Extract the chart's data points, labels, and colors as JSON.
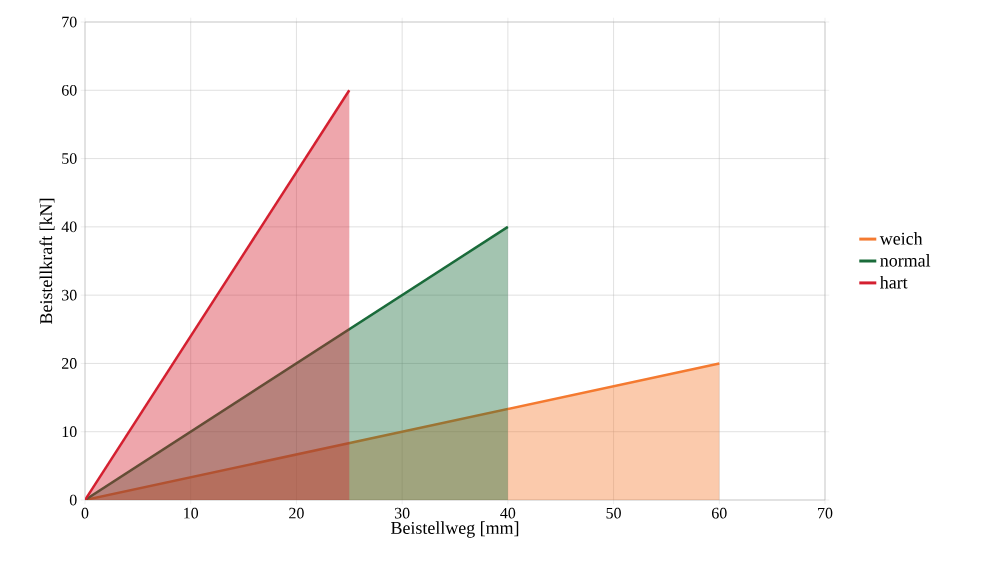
{
  "chart_data": {
    "type": "area",
    "xlabel": "Beistellweg [mm]",
    "ylabel": "Beistellkraft  [kN]",
    "series": [
      {
        "name": "weich",
        "color": "#f47a30",
        "x": [
          0,
          60
        ],
        "values": [
          0,
          20
        ]
      },
      {
        "name": "normal",
        "color": "#1a6b3a",
        "x": [
          0,
          40
        ],
        "values": [
          0,
          40
        ]
      },
      {
        "name": "hart",
        "color": "#d42030",
        "x": [
          0,
          25
        ],
        "values": [
          0,
          60
        ]
      }
    ],
    "xlim": [
      0,
      70
    ],
    "ylim": [
      0,
      70
    ],
    "xticks": [
      0,
      10,
      20,
      30,
      40,
      50,
      60,
      70
    ],
    "yticks": [
      0,
      10,
      20,
      30,
      40,
      50,
      60,
      70
    ],
    "grid": true,
    "legend": "right",
    "line_style": "solid"
  }
}
